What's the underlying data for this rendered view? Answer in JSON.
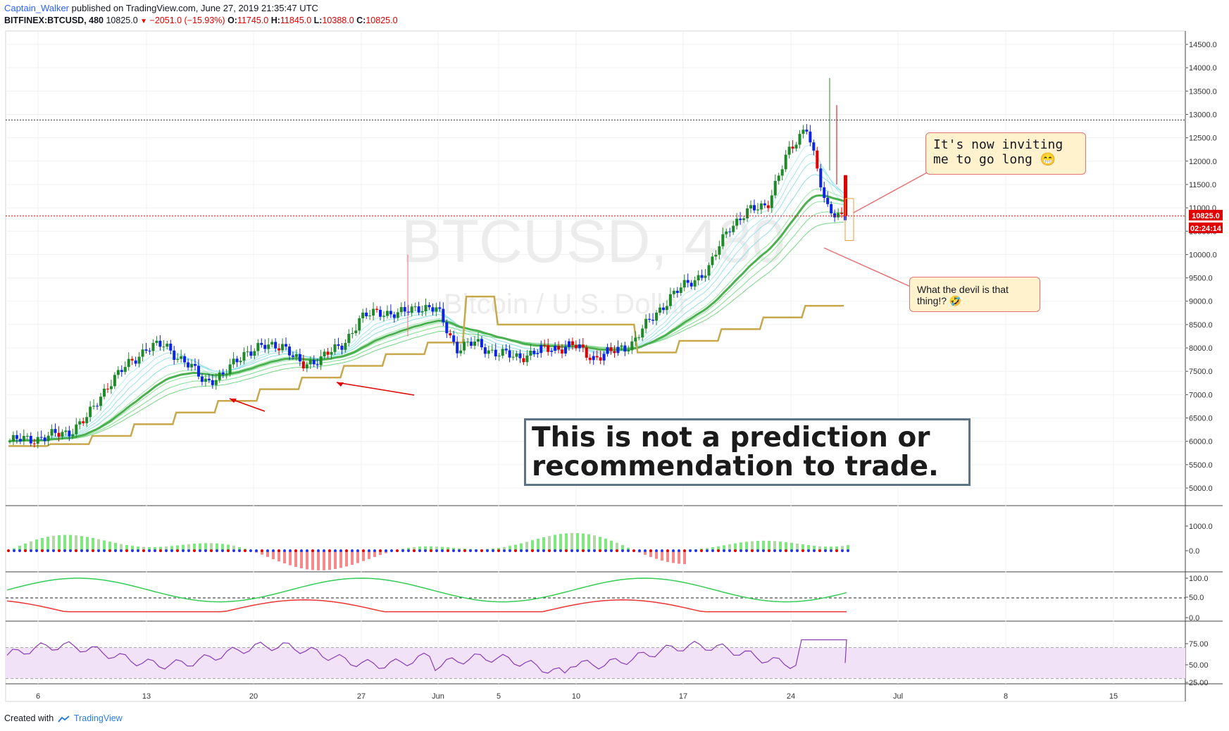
{
  "header": {
    "user": "Captain_Walker",
    "published": "published on TradingView.com, June 27, 2019 21:35:47 UTC",
    "symbol": "BITFINEX:BTCUSD, 480",
    "last": "10825.0",
    "change": "−2051.0 (−15.93%)",
    "o_label": "O:",
    "o_val": "11745.0",
    "h_label": "H:",
    "h_val": "11845.0",
    "l_label": "L:",
    "l_val": "10388.0",
    "c_label": "C:",
    "c_val": "10825.0"
  },
  "watermark": {
    "big": "BTCUSD, 480",
    "sub": "Bitcoin / U.S. Dollar"
  },
  "annotations": {
    "callout1": "It's now inviting me to go long 😁",
    "callout2": "What the devil is that thing!? 🤣",
    "disclaimer": "This is not a prediction or recommendation to trade."
  },
  "price_badge": {
    "price": "10825.0",
    "timer": "02:24:14"
  },
  "footer": {
    "created": "Created with",
    "brand": "TradingView"
  },
  "colors": {
    "up": "#1f8a2a",
    "down": "#e00000",
    "blue": "#0b24e6",
    "ema_dark": "#4caf50",
    "gold": "#c8a84b"
  },
  "chart_data": [
    {
      "type": "candlestick",
      "pane": "price",
      "y_ticks": [
        "14500.0",
        "14000.0",
        "13500.0",
        "13000.0",
        "12500.0",
        "12000.0",
        "11500.0",
        "11000.0",
        "10500.0",
        "10000.0",
        "9500.0",
        "9000.0",
        "8500.0",
        "8000.0",
        "7500.0",
        "7000.0",
        "6500.0",
        "6000.0",
        "5500.0",
        "5000.0"
      ],
      "ylim": [
        4800,
        14700
      ],
      "x_ticks": [
        "6",
        "13",
        "20",
        "27",
        "Jun",
        "5",
        "10",
        "17",
        "24",
        "Jul",
        "8",
        "15"
      ],
      "reference_lines": [
        12880,
        10825
      ],
      "series": [
        {
          "name": "close_path",
          "values": [
            6000,
            6050,
            6100,
            6200,
            6500,
            7200,
            7600,
            8000,
            8050,
            7700,
            7300,
            7400,
            7900,
            8000,
            8100,
            7600,
            7800,
            8000,
            8600,
            8800,
            8700,
            8900,
            8800,
            8000,
            8100,
            7900,
            7800,
            7900,
            8000,
            8050,
            7800,
            7900,
            8100,
            8600,
            9100,
            9400,
            9700,
            10600,
            10900,
            11100,
            12100,
            12800,
            11000,
            10825
          ]
        }
      ]
    },
    {
      "type": "bar",
      "pane": "oscillator",
      "y_ticks": [
        "1000.0",
        "0.0"
      ],
      "ylim": [
        -300,
        1600
      ]
    },
    {
      "type": "line",
      "pane": "stochastic",
      "y_ticks": [
        "100.0",
        "50.0",
        "0.0"
      ],
      "ylim": [
        0,
        100
      ]
    },
    {
      "type": "line",
      "pane": "rsi",
      "y_ticks": [
        "75.00",
        "50.00",
        "25.00"
      ],
      "ylim": [
        25,
        100
      ]
    }
  ]
}
